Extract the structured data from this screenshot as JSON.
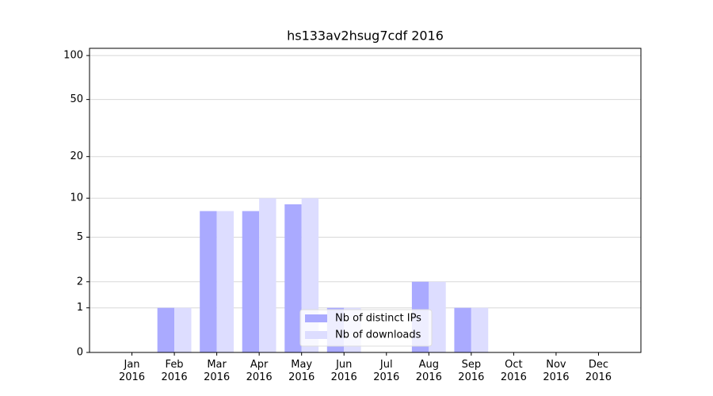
{
  "chart_data": {
    "type": "bar",
    "title": "hs133av2hsug7cdf 2016",
    "categories": [
      "Jan 2016",
      "Feb 2016",
      "Mar 2016",
      "Apr 2016",
      "May 2016",
      "Jun 2016",
      "Jul 2016",
      "Aug 2016",
      "Sep 2016",
      "Oct 2016",
      "Nov 2016",
      "Dec 2016"
    ],
    "series": [
      {
        "name": "Nb of distinct IPs",
        "color": "#aaaaff",
        "values": [
          0,
          1,
          8,
          8,
          9,
          1,
          0,
          2,
          1,
          0,
          0,
          0
        ]
      },
      {
        "name": "Nb of downloads",
        "color": "#ddddff",
        "values": [
          0,
          1,
          8,
          10,
          10,
          1,
          0,
          2,
          1,
          0,
          0,
          0
        ]
      }
    ],
    "yscale": "symlog",
    "ylim": [
      0,
      112
    ],
    "yticks": [
      0,
      1,
      2,
      5,
      10,
      20,
      50,
      100
    ],
    "grid": true,
    "legend": "lower center"
  }
}
